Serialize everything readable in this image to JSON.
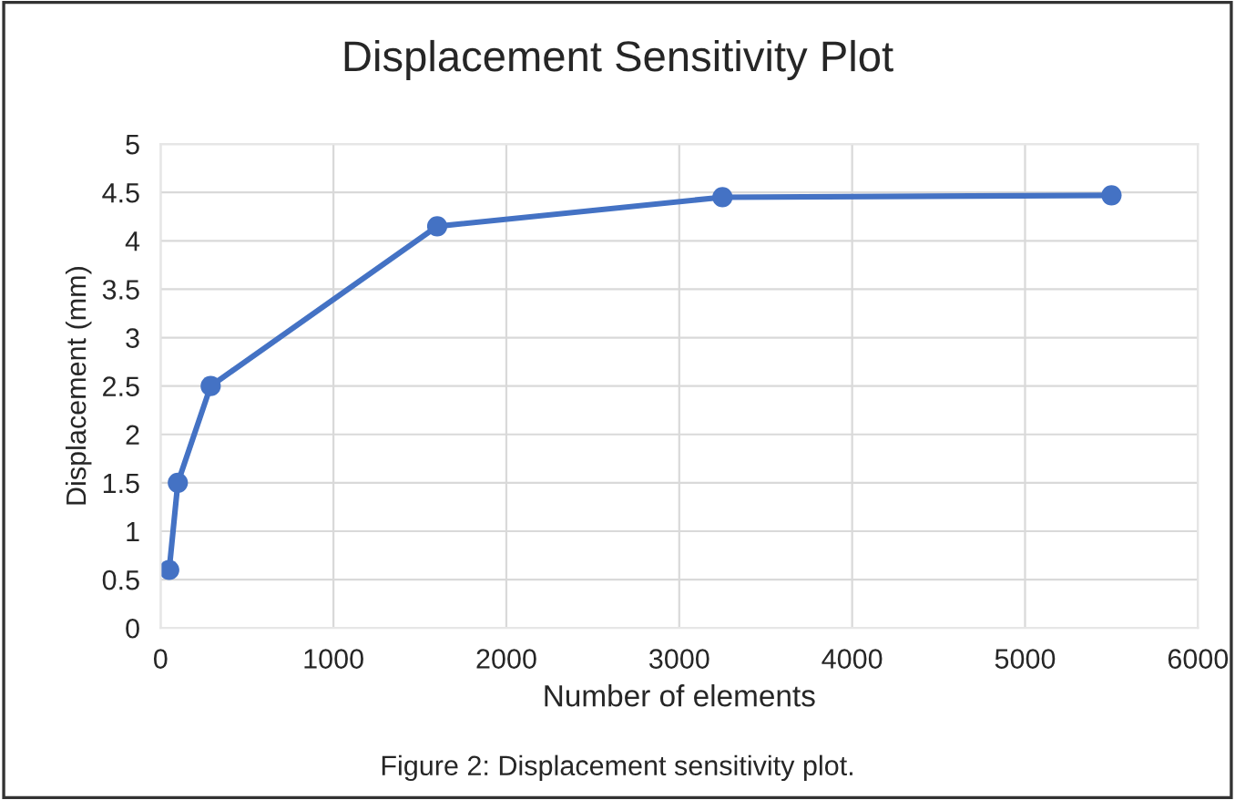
{
  "chart_data": {
    "type": "line",
    "title": "Displacement Sensitivity Plot",
    "xlabel": "Number of elements",
    "ylabel": "Displacement (mm)",
    "x": [
      50,
      100,
      290,
      1600,
      3250,
      5500
    ],
    "series": [
      {
        "color": "#4472c4",
        "values": [
          0.6,
          1.5,
          2.5,
          4.15,
          4.45,
          4.47
        ]
      }
    ],
    "xlim": [
      0,
      6000
    ],
    "xticks": [
      0,
      1000,
      2000,
      3000,
      4000,
      5000,
      6000
    ],
    "ylim": [
      0,
      5
    ],
    "yticks": [
      0,
      0.5,
      1,
      1.5,
      2,
      2.5,
      3,
      3.5,
      4,
      4.5,
      5
    ],
    "grid": true,
    "marker": "circle",
    "line_style": "solid",
    "annotations": [
      "Figure 2: Displacement sensitivity plot."
    ]
  }
}
